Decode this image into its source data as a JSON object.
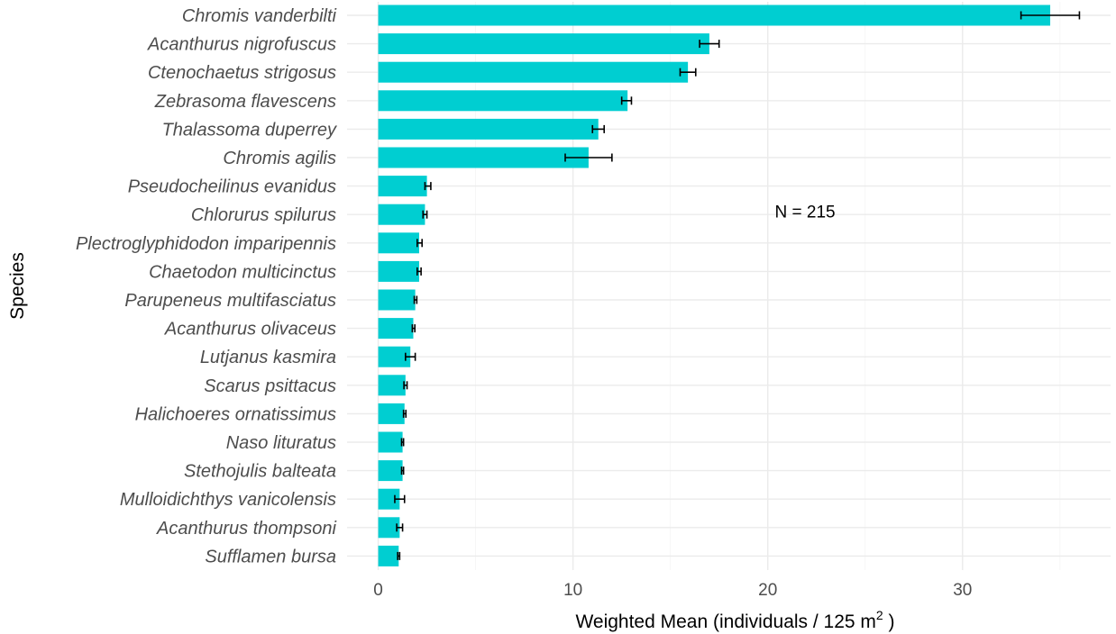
{
  "chart_data": {
    "type": "bar",
    "orientation": "horizontal",
    "categories": [
      "Chromis vanderbilti",
      "Acanthurus nigrofuscus",
      "Ctenochaetus strigosus",
      "Zebrasoma flavescens",
      "Thalassoma duperrey",
      "Chromis agilis",
      "Pseudocheilinus evanidus",
      "Chlorurus spilurus",
      "Plectroglyphidodon imparipennis",
      "Chaetodon multicinctus",
      "Parupeneus multifasciatus",
      "Acanthurus olivaceus",
      "Lutjanus kasmira",
      "Scarus psittacus",
      "Halichoeres ornatissimus",
      "Naso lituratus",
      "Stethojulis balteata",
      "Mulloidichthys vanicolensis",
      "Acanthurus thompsoni",
      "Sufflamen bursa"
    ],
    "values": [
      34.5,
      17.0,
      15.9,
      12.8,
      11.3,
      10.8,
      2.5,
      2.4,
      2.1,
      2.1,
      1.9,
      1.8,
      1.65,
      1.4,
      1.35,
      1.25,
      1.25,
      1.1,
      1.1,
      1.05
    ],
    "error": [
      [
        33.0,
        36.0
      ],
      [
        16.5,
        17.5
      ],
      [
        15.5,
        16.3
      ],
      [
        12.5,
        13.0
      ],
      [
        11.0,
        11.6
      ],
      [
        9.6,
        12.0
      ],
      [
        2.4,
        2.7
      ],
      [
        2.3,
        2.5
      ],
      [
        2.0,
        2.25
      ],
      [
        2.0,
        2.2
      ],
      [
        1.85,
        1.98
      ],
      [
        1.75,
        1.88
      ],
      [
        1.4,
        1.9
      ],
      [
        1.32,
        1.48
      ],
      [
        1.3,
        1.42
      ],
      [
        1.2,
        1.3
      ],
      [
        1.2,
        1.3
      ],
      [
        0.85,
        1.35
      ],
      [
        0.95,
        1.25
      ],
      [
        1.0,
        1.1
      ]
    ],
    "xlabel_main": "Weighted Mean (individuals / 125 m",
    "xlabel_sup": "2",
    "xlabel_end": " )",
    "ylabel": "Species",
    "xlim": [
      -1.6,
      37.6
    ],
    "xticks": [
      0,
      10,
      20,
      30
    ],
    "xtick_labels": [
      "0",
      "10",
      "20",
      "30"
    ],
    "annotation": "N = 215",
    "annotation_pos": [
      20.5,
      6.7
    ],
    "bar_color": "#00CED1",
    "grid": true
  }
}
